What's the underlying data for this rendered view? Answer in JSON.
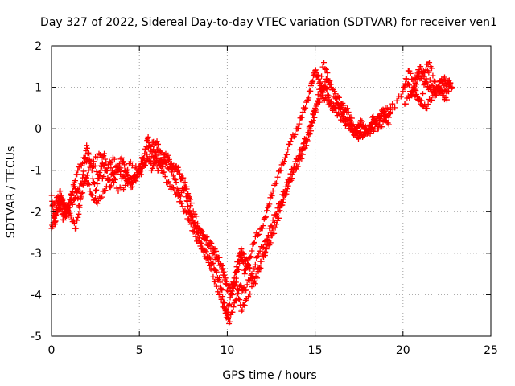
{
  "chart_data": {
    "type": "scatter",
    "title": "Day 327 of 2022, Sidereal Day-to-day VTEC variation (SDTVAR) for receiver ven1",
    "xlabel": "GPS time / hours",
    "ylabel": "SDTVAR / TECUs",
    "xlim": [
      0,
      25
    ],
    "ylim": [
      -5,
      2
    ],
    "xticks": [
      0,
      5,
      10,
      15,
      20,
      25
    ],
    "yticks": [
      -5,
      -4,
      -3,
      -2,
      -1,
      0,
      1,
      2
    ],
    "xtick_labels": [
      "0",
      "5",
      "10",
      "15",
      "20",
      "25"
    ],
    "ytick_labels": [
      "-5",
      "-4",
      "-3",
      "-2",
      "-1",
      "0",
      "1",
      "2"
    ],
    "grid": true,
    "legend": "none",
    "marker": "plus",
    "color": "#ff0000",
    "series": [
      {
        "x": [
          0.0,
          0.1,
          0.2,
          0.3,
          0.5,
          0.7,
          1.0,
          1.3,
          1.6,
          1.8,
          2.0,
          2.2,
          2.5,
          2.8,
          3.0,
          3.3,
          3.6,
          4.0,
          4.3,
          4.6,
          5.0,
          5.3,
          5.5,
          5.7,
          6.0,
          6.3,
          6.6,
          7.0,
          7.3,
          7.6,
          7.8,
          8.0,
          8.3,
          8.6,
          9.0,
          9.3,
          9.6,
          9.8,
          10.0,
          10.2,
          10.4,
          10.6,
          10.8,
          11.0,
          11.3,
          11.6,
          12.0,
          12.3,
          12.6,
          13.0,
          13.3,
          13.6,
          14.0,
          14.3,
          14.6,
          14.8,
          15.0,
          15.2,
          15.4,
          15.6,
          15.8,
          16.0,
          16.3,
          16.6,
          17.0,
          17.3,
          17.6,
          18.0,
          18.3,
          18.6,
          19.0,
          19.3,
          20.0,
          20.2,
          20.5,
          20.8,
          21.0,
          21.3,
          21.6,
          22.0,
          22.3,
          22.6,
          22.8
        ],
        "y": [
          -1.6,
          -2.0,
          -2.3,
          -1.9,
          -1.5,
          -2.1,
          -1.8,
          -1.3,
          -1.9,
          -1.1,
          -0.4,
          -0.8,
          -1.5,
          -1.0,
          -0.6,
          -1.4,
          -1.2,
          -0.7,
          -1.1,
          -1.3,
          -0.9,
          -0.6,
          -0.2,
          -1.0,
          -0.5,
          -0.9,
          -0.7,
          -1.2,
          -1.6,
          -1.4,
          -2.0,
          -2.1,
          -2.5,
          -2.9,
          -3.1,
          -3.4,
          -3.7,
          -4.2,
          -4.5,
          -4.0,
          -3.6,
          -3.2,
          -2.9,
          -3.5,
          -3.1,
          -2.6,
          -2.4,
          -1.9,
          -1.5,
          -1.0,
          -0.7,
          -0.3,
          0.0,
          0.4,
          0.7,
          1.1,
          1.4,
          1.2,
          0.9,
          1.0,
          0.7,
          0.5,
          0.6,
          0.3,
          0.1,
          -0.1,
          0.2,
          -0.1,
          0.3,
          0.0,
          0.2,
          0.4,
          0.9,
          1.2,
          0.8,
          1.3,
          1.5,
          1.1,
          0.9,
          1.0,
          0.8,
          1.1,
          1.0
        ]
      },
      {
        "x": [
          0.0,
          0.2,
          0.4,
          0.7,
          1.0,
          1.3,
          1.6,
          2.0,
          2.3,
          2.6,
          3.0,
          3.4,
          3.8,
          4.2,
          4.6,
          5.0,
          5.4,
          5.8,
          6.2,
          6.6,
          7.0,
          7.4,
          7.8,
          8.2,
          8.6,
          9.0,
          9.4,
          9.8,
          10.1,
          10.4,
          10.7,
          11.0,
          11.4,
          11.8,
          12.2,
          12.6,
          13.0,
          13.4,
          13.8,
          14.2,
          14.6,
          15.0,
          15.4,
          15.8,
          16.2,
          16.6,
          17.0,
          17.4,
          17.8,
          18.2,
          18.6,
          19.0,
          20.1,
          20.5,
          20.9,
          21.3,
          21.7,
          22.1,
          22.5
        ],
        "y": [
          -2.4,
          -2.1,
          -1.8,
          -2.2,
          -1.9,
          -1.7,
          -1.4,
          -1.2,
          -1.6,
          -1.8,
          -1.5,
          -1.1,
          -0.9,
          -1.2,
          -1.4,
          -1.0,
          -0.8,
          -0.5,
          -0.9,
          -1.3,
          -1.5,
          -1.8,
          -2.2,
          -2.6,
          -2.9,
          -3.3,
          -3.8,
          -4.3,
          -4.7,
          -4.2,
          -3.8,
          -3.9,
          -3.5,
          -3.0,
          -2.7,
          -2.2,
          -1.8,
          -1.3,
          -0.9,
          -0.5,
          -0.1,
          0.5,
          0.8,
          0.6,
          0.4,
          0.2,
          0.0,
          -0.2,
          -0.1,
          0.1,
          0.3,
          0.5,
          0.6,
          0.9,
          0.7,
          0.5,
          0.8,
          0.9,
          0.7
        ]
      },
      {
        "x": [
          0.1,
          0.5,
          0.9,
          1.2,
          1.5,
          1.9,
          2.4,
          2.9,
          3.3,
          3.8,
          4.4,
          4.9,
          5.3,
          5.8,
          6.1,
          6.5,
          6.9,
          7.2,
          7.5,
          7.9,
          8.4,
          8.8,
          9.2,
          9.5,
          9.9,
          10.3,
          10.6,
          10.9,
          11.2,
          11.5,
          11.9,
          12.4,
          12.8,
          13.2,
          13.6,
          14.1,
          14.5,
          14.9,
          15.3,
          15.7,
          16.1,
          16.5,
          16.9,
          17.3,
          17.7,
          18.1,
          18.5,
          18.9,
          19.2,
          20.3,
          20.7,
          21.1,
          21.5,
          21.9,
          22.3,
          22.7
        ],
        "y": [
          -1.8,
          -1.6,
          -2.0,
          -1.5,
          -1.0,
          -0.7,
          -0.9,
          -1.2,
          -0.8,
          -1.5,
          -1.3,
          -1.1,
          -0.8,
          -0.7,
          -1.0,
          -0.6,
          -0.9,
          -1.0,
          -1.3,
          -1.7,
          -2.4,
          -2.7,
          -3.0,
          -3.2,
          -3.6,
          -4.0,
          -3.4,
          -3.0,
          -3.3,
          -3.7,
          -3.2,
          -2.8,
          -2.3,
          -1.7,
          -1.2,
          -0.8,
          -0.4,
          0.2,
          0.9,
          1.2,
          0.9,
          0.6,
          0.4,
          0.0,
          -0.2,
          0.0,
          0.2,
          0.4,
          0.1,
          1.4,
          1.1,
          1.3,
          1.6,
          1.0,
          1.2,
          1.1
        ]
      },
      {
        "x": [
          0.3,
          0.6,
          0.8,
          1.1,
          1.4,
          1.7,
          2.1,
          2.7,
          3.1,
          3.5,
          4.0,
          4.5,
          5.1,
          5.6,
          6.0,
          6.4,
          6.8,
          7.1,
          7.7,
          8.1,
          8.5,
          8.9,
          9.3,
          9.7,
          10.0,
          10.5,
          10.8,
          11.1,
          11.7,
          12.1,
          12.5,
          12.9,
          13.3,
          13.7,
          14.2,
          14.7,
          15.1,
          15.5,
          15.9,
          16.4,
          16.8,
          17.2,
          17.6,
          18.0,
          18.4,
          18.8,
          19.4,
          20.6,
          21.0,
          21.4,
          21.8,
          22.2,
          22.6
        ],
        "y": [
          -2.0,
          -1.7,
          -1.9,
          -2.1,
          -2.4,
          -1.6,
          -1.0,
          -0.6,
          -1.0,
          -0.7,
          -1.2,
          -0.8,
          -1.1,
          -0.4,
          -0.3,
          -0.8,
          -1.0,
          -0.9,
          -1.4,
          -2.3,
          -2.5,
          -2.7,
          -2.9,
          -3.3,
          -3.9,
          -3.7,
          -4.4,
          -4.1,
          -3.6,
          -3.0,
          -2.5,
          -2.0,
          -1.6,
          -1.1,
          -0.6,
          0.0,
          0.6,
          1.6,
          1.0,
          0.5,
          0.4,
          -0.1,
          0.1,
          -0.1,
          0.0,
          0.3,
          0.6,
          1.0,
          0.6,
          1.4,
          0.8,
          1.2,
          0.9
        ]
      }
    ]
  }
}
